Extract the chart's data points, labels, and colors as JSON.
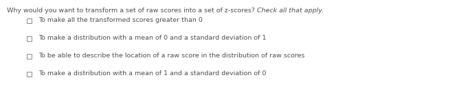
{
  "title_normal": "Why would you want to transform a set of raw scores into a set of z-scores? ",
  "title_italic": "Check all that apply.",
  "options": [
    "To make all the transformed scores greater than 0",
    "To make a distribution with a mean of 0 and a standard deviation of 1",
    "To be able to describe the location of a raw score in the distribution of raw scores",
    "To make a distribution with a mean of 1 and a standard deviation of 0"
  ],
  "background_color": "#ffffff",
  "text_color": "#505050",
  "title_fontsize": 6.8,
  "option_fontsize": 6.8,
  "fig_width": 6.71,
  "fig_height": 1.39,
  "dpi": 100
}
